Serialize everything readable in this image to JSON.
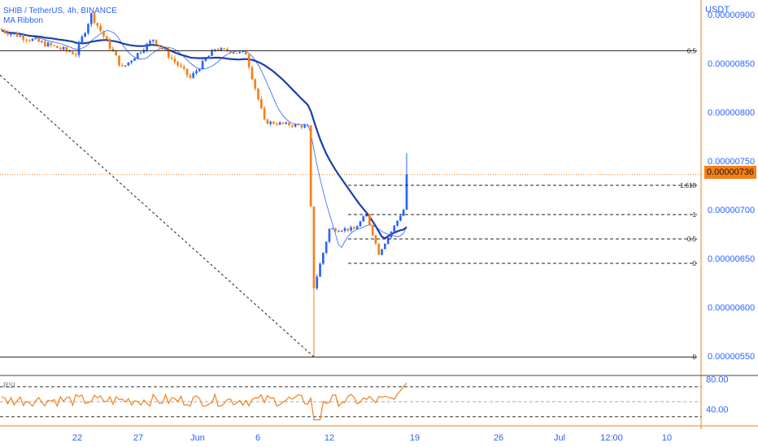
{
  "legend": {
    "title": "SHIB / TetherUS, 4h, BINANCE",
    "indicator": "MA Ribbon",
    "rsi_label": "RSI"
  },
  "axis": {
    "currency": "USDT",
    "last_price": "0.00000736"
  },
  "colors": {
    "up": "#2962ff",
    "down": "#f57f17",
    "ma_fast": "#2962ff",
    "ma_slow": "#1e3fa8",
    "accent": "#f57f17",
    "fib": "#222222"
  },
  "chart_data": [
    {
      "type": "candlestick",
      "title": "SHIB / TetherUS, 4h, BINANCE",
      "ylim": [
        5.3e-06,
        9.15e-06
      ],
      "price_ticks": [
        "0.00000900",
        "0.00000850",
        "0.00000800",
        "0.00000750",
        "0.00000700",
        "0.00000650",
        "0.00000600",
        "0.00000550"
      ],
      "price_tick_values": [
        9e-06,
        8.5e-06,
        8e-06,
        7.5e-06,
        7e-06,
        6.5e-06,
        6e-06,
        5.5e-06
      ],
      "x_ticks": [
        "22",
        "27",
        "Jun",
        "6",
        "12",
        "19",
        "26",
        "Jul",
        "12:00",
        "10"
      ],
      "last_price": 7.36e-06,
      "fib_levels": [
        {
          "label": "0.5",
          "price": 8.63e-06
        },
        {
          "label": "1.618",
          "price": 7.25e-06
        },
        {
          "label": "1",
          "price": 6.95e-06
        },
        {
          "label": "0.5",
          "price": 6.7e-06
        },
        {
          "label": "0",
          "price": 6.45e-06
        },
        {
          "label": "0",
          "price": 5.49e-06
        }
      ],
      "segments": [
        {
          "from": 8.85e-06,
          "to": 8.6e-06,
          "n": 25,
          "noise": 6e-08
        },
        {
          "from": 8.6e-06,
          "to": 9e-06,
          "n": 5,
          "noise": 6e-08
        },
        {
          "from": 9e-06,
          "to": 8.45e-06,
          "n": 10,
          "noise": 6e-08
        },
        {
          "from": 8.45e-06,
          "to": 8.75e-06,
          "n": 10,
          "noise": 5e-08
        },
        {
          "from": 8.75e-06,
          "to": 8.35e-06,
          "n": 12,
          "noise": 6e-08
        },
        {
          "from": 8.35e-06,
          "to": 8.65e-06,
          "n": 8,
          "noise": 5e-08
        },
        {
          "from": 8.65e-06,
          "to": 8.6e-06,
          "n": 10,
          "noise": 4e-08
        },
        {
          "from": 8.6e-06,
          "to": 7.9e-06,
          "n": 6,
          "noise": 6e-08
        },
        {
          "from": 7.9e-06,
          "to": 7.85e-06,
          "n": 14,
          "noise": 4e-08
        },
        {
          "from": 7.85e-06,
          "to": 6.2e-06,
          "n": 2,
          "noise": 2e-08
        },
        {
          "from": 6.2e-06,
          "to": 6.8e-06,
          "n": 5,
          "noise": 5e-08
        },
        {
          "from": 6.8e-06,
          "to": 6.8e-06,
          "n": 8,
          "noise": 4e-08
        },
        {
          "from": 6.8e-06,
          "to": 6.95e-06,
          "n": 4,
          "noise": 4e-08
        },
        {
          "from": 6.95e-06,
          "to": 6.55e-06,
          "n": 4,
          "noise": 3e-08
        },
        {
          "from": 6.55e-06,
          "to": 7e-06,
          "n": 8,
          "noise": 3e-08
        },
        {
          "from": 7e-06,
          "to": 7.36e-06,
          "n": 1,
          "noise": 0.0
        }
      ],
      "rsi": {
        "label": "RSI",
        "ylim": [
          20,
          85
        ],
        "ticks": [
          "80.00",
          "40.00"
        ],
        "tick_values": [
          80,
          40
        ],
        "upper": 70,
        "lower": 30
      }
    }
  ]
}
